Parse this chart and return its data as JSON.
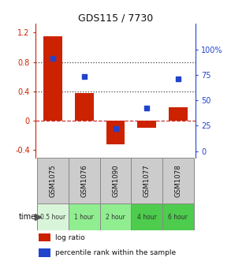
{
  "title": "GDS115 / 7730",
  "categories": [
    "GSM1075",
    "GSM1076",
    "GSM1090",
    "GSM1077",
    "GSM1078"
  ],
  "time_labels": [
    "0.5 hour",
    "1 hour",
    "2 hour",
    "4 hour",
    "6 hour"
  ],
  "time_colors": [
    "#d9f5d9",
    "#90ee90",
    "#90ee90",
    "#4dcc4d",
    "#4dcc4d"
  ],
  "log_ratio": [
    1.15,
    0.38,
    -0.32,
    -0.1,
    0.18
  ],
  "percentile_pct": [
    91,
    73,
    22,
    42,
    71
  ],
  "bar_color": "#cc2200",
  "dot_color": "#2244cc",
  "ylim_left": [
    -0.5,
    1.32
  ],
  "ylim_right": [
    -6.25,
    125
  ],
  "yticks_left": [
    -0.4,
    0.0,
    0.4,
    0.8,
    1.2
  ],
  "yticks_right": [
    0,
    25,
    50,
    75,
    100
  ],
  "ytick_labels_right": [
    "0",
    "25",
    "50",
    "75",
    "100%"
  ],
  "ytick_labels_left": [
    "-0.4",
    "0",
    "0.4",
    "0.8",
    "1.2"
  ],
  "bg_color": "#ffffff",
  "legend_log_label": "log ratio",
  "legend_pct_label": "percentile rank within the sample",
  "time_label": "time",
  "bar_width": 0.6,
  "sample_row_color": "#cccccc",
  "grid_color": "#444444",
  "zero_line_color": "#cc3333"
}
